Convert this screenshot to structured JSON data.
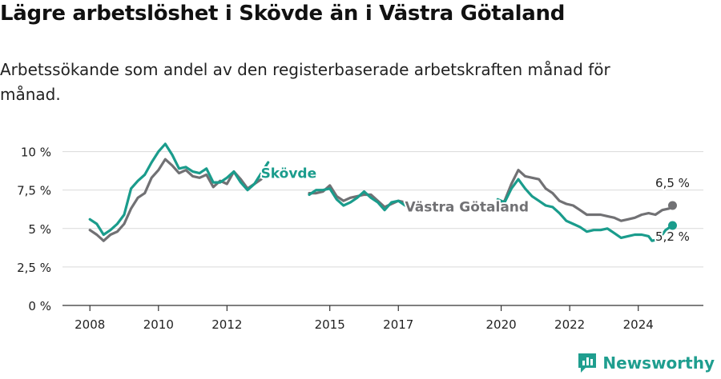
{
  "header": {
    "title": "Lägre arbetslöshet i Skövde än i Västra Götaland",
    "subtitle": "Arbetssökande som andel av den registerbaserade arbetskraften månad för månad."
  },
  "footer": {
    "brand": "Newsworthy"
  },
  "colors": {
    "skovde": "#1a9c8c",
    "vastra": "#717174",
    "grid": "#d9d9d9",
    "axis": "#333333",
    "brand": "#1f9e8f"
  },
  "chart_data": {
    "type": "line",
    "title": "Lägre arbetslöshet i Skövde än i Västra Götaland",
    "subtitle": "Arbetssökande som andel av den registerbaserade arbetskraften månad för månad.",
    "xlabel": "",
    "ylabel": "",
    "xlim": [
      2007.2,
      2025.9
    ],
    "ylim": [
      0,
      10.5
    ],
    "x_ticks": [
      {
        "value": 2008,
        "label": "2008"
      },
      {
        "value": 2010,
        "label": "2010"
      },
      {
        "value": 2012,
        "label": "2012"
      },
      {
        "value": 2015,
        "label": "2015"
      },
      {
        "value": 2017,
        "label": "2017"
      },
      {
        "value": 2020,
        "label": "2020"
      },
      {
        "value": 2022,
        "label": "2022"
      },
      {
        "value": 2024,
        "label": "2024"
      }
    ],
    "y_ticks": [
      {
        "value": 0,
        "label": "0 %"
      },
      {
        "value": 2.5,
        "label": "2,5 %"
      },
      {
        "value": 5,
        "label": "5 %"
      },
      {
        "value": 7.5,
        "label": "7,5 %"
      },
      {
        "value": 10,
        "label": "10 %"
      }
    ],
    "grid": "horizontal",
    "series": [
      {
        "name": "Västra Götaland",
        "color": "#717174",
        "end_label": "6,5 %",
        "segments": [
          [
            [
              2008.0,
              4.9
            ],
            [
              2008.2,
              4.6
            ],
            [
              2008.4,
              4.2
            ],
            [
              2008.6,
              4.6
            ],
            [
              2008.8,
              4.8
            ],
            [
              2009.0,
              5.3
            ],
            [
              2009.2,
              6.3
            ],
            [
              2009.4,
              7.0
            ],
            [
              2009.6,
              7.3
            ],
            [
              2009.8,
              8.3
            ],
            [
              2010.0,
              8.8
            ],
            [
              2010.2,
              9.5
            ],
            [
              2010.4,
              9.1
            ],
            [
              2010.6,
              8.6
            ],
            [
              2010.8,
              8.8
            ],
            [
              2011.0,
              8.4
            ],
            [
              2011.2,
              8.3
            ],
            [
              2011.4,
              8.5
            ],
            [
              2011.6,
              7.7
            ],
            [
              2011.8,
              8.1
            ],
            [
              2012.0,
              7.9
            ],
            [
              2012.2,
              8.7
            ],
            [
              2012.4,
              8.2
            ],
            [
              2012.6,
              7.6
            ],
            [
              2012.8,
              7.9
            ],
            [
              2013.0,
              8.2
            ]
          ],
          [
            [
              2014.4,
              7.3
            ],
            [
              2014.6,
              7.3
            ],
            [
              2014.8,
              7.4
            ],
            [
              2015.0,
              7.8
            ],
            [
              2015.2,
              7.1
            ],
            [
              2015.4,
              6.8
            ],
            [
              2015.6,
              7.0
            ],
            [
              2015.8,
              7.1
            ],
            [
              2016.0,
              7.2
            ],
            [
              2016.2,
              7.2
            ],
            [
              2016.4,
              6.8
            ],
            [
              2016.6,
              6.4
            ],
            [
              2016.8,
              6.6
            ],
            [
              2017.0,
              6.8
            ],
            [
              2017.2,
              6.7
            ]
          ],
          [
            [
              2019.9,
              6.6
            ],
            [
              2020.1,
              6.8
            ],
            [
              2020.3,
              7.9
            ],
            [
              2020.5,
              8.8
            ],
            [
              2020.7,
              8.4
            ],
            [
              2020.9,
              8.3
            ],
            [
              2021.1,
              8.2
            ],
            [
              2021.3,
              7.6
            ],
            [
              2021.5,
              7.3
            ],
            [
              2021.7,
              6.8
            ],
            [
              2021.9,
              6.6
            ],
            [
              2022.1,
              6.5
            ],
            [
              2022.3,
              6.2
            ],
            [
              2022.5,
              5.9
            ],
            [
              2022.7,
              5.9
            ],
            [
              2022.9,
              5.9
            ],
            [
              2023.1,
              5.8
            ],
            [
              2023.3,
              5.7
            ],
            [
              2023.5,
              5.5
            ],
            [
              2023.7,
              5.6
            ],
            [
              2023.9,
              5.7
            ],
            [
              2024.1,
              5.9
            ],
            [
              2024.3,
              6.0
            ],
            [
              2024.5,
              5.9
            ],
            [
              2024.7,
              6.2
            ],
            [
              2024.9,
              6.3
            ],
            [
              2025.0,
              6.5
            ]
          ]
        ]
      },
      {
        "name": "Skövde",
        "color": "#1a9c8c",
        "end_label": "5,2 %",
        "segments": [
          [
            [
              2008.0,
              5.6
            ],
            [
              2008.2,
              5.3
            ],
            [
              2008.4,
              4.6
            ],
            [
              2008.6,
              4.9
            ],
            [
              2008.8,
              5.3
            ],
            [
              2009.0,
              5.9
            ],
            [
              2009.2,
              7.6
            ],
            [
              2009.4,
              8.1
            ],
            [
              2009.6,
              8.5
            ],
            [
              2009.8,
              9.3
            ],
            [
              2010.0,
              10.0
            ],
            [
              2010.2,
              10.5
            ],
            [
              2010.4,
              9.8
            ],
            [
              2010.6,
              8.9
            ],
            [
              2010.8,
              9.0
            ],
            [
              2011.0,
              8.7
            ],
            [
              2011.2,
              8.6
            ],
            [
              2011.4,
              8.9
            ],
            [
              2011.6,
              8.0
            ],
            [
              2011.8,
              8.0
            ],
            [
              2012.0,
              8.3
            ],
            [
              2012.2,
              8.7
            ],
            [
              2012.4,
              8.0
            ],
            [
              2012.6,
              7.5
            ],
            [
              2012.8,
              7.9
            ],
            [
              2013.0,
              8.6
            ],
            [
              2013.2,
              9.3
            ]
          ],
          [
            [
              2014.4,
              7.2
            ],
            [
              2014.6,
              7.5
            ],
            [
              2014.8,
              7.5
            ],
            [
              2015.0,
              7.6
            ],
            [
              2015.2,
              6.9
            ],
            [
              2015.4,
              6.5
            ],
            [
              2015.6,
              6.7
            ],
            [
              2015.8,
              7.0
            ],
            [
              2016.0,
              7.4
            ],
            [
              2016.2,
              7.0
            ],
            [
              2016.4,
              6.7
            ],
            [
              2016.6,
              6.2
            ],
            [
              2016.8,
              6.7
            ],
            [
              2017.0,
              6.8
            ],
            [
              2017.2,
              6.5
            ]
          ],
          [
            [
              2019.9,
              6.9
            ],
            [
              2020.1,
              6.7
            ],
            [
              2020.3,
              7.6
            ],
            [
              2020.5,
              8.2
            ],
            [
              2020.7,
              7.6
            ],
            [
              2020.9,
              7.1
            ],
            [
              2021.1,
              6.8
            ],
            [
              2021.3,
              6.5
            ],
            [
              2021.5,
              6.4
            ],
            [
              2021.7,
              6.0
            ],
            [
              2021.9,
              5.5
            ],
            [
              2022.1,
              5.3
            ],
            [
              2022.3,
              5.1
            ],
            [
              2022.5,
              4.8
            ],
            [
              2022.7,
              4.9
            ],
            [
              2022.9,
              4.9
            ],
            [
              2023.1,
              5.0
            ],
            [
              2023.3,
              4.7
            ],
            [
              2023.5,
              4.4
            ],
            [
              2023.7,
              4.5
            ],
            [
              2023.9,
              4.6
            ],
            [
              2024.1,
              4.6
            ],
            [
              2024.3,
              4.5
            ],
            [
              2024.4,
              4.2
            ],
            [
              2024.6,
              4.3
            ],
            [
              2024.8,
              4.9
            ],
            [
              2025.0,
              5.2
            ]
          ]
        ]
      }
    ],
    "annotations": [
      {
        "text": "Skövde",
        "series": "Skövde",
        "x": 2013.8,
        "y": 8.3
      },
      {
        "text": "Västra Götaland",
        "series": "Västra Götaland",
        "x": 2019.0,
        "y": 6.1
      },
      {
        "text": "6,5 %",
        "series": "Västra Götaland",
        "x": 2025.0,
        "y": 7.7
      },
      {
        "text": "5,2 %",
        "series": "Skövde",
        "x": 2025.0,
        "y": 4.2
      }
    ]
  }
}
